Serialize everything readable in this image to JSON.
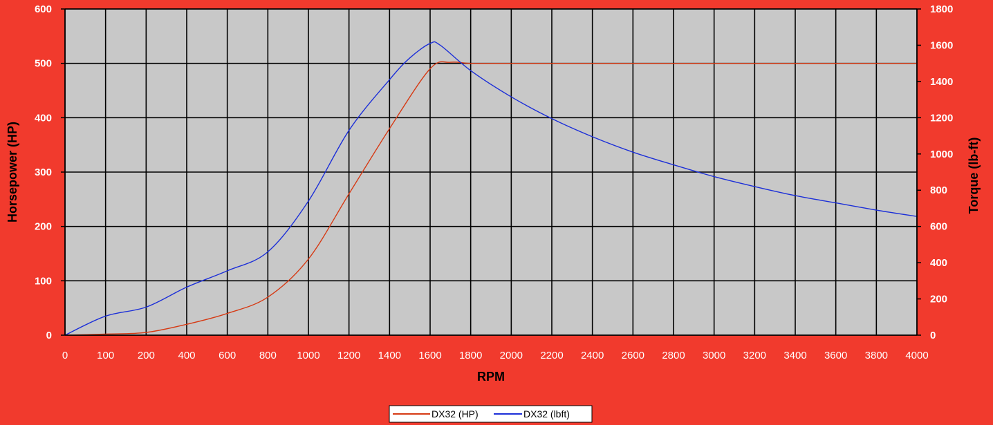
{
  "chart_data": {
    "type": "line",
    "xlabel": "RPM",
    "ylabel_left": "Horsepower (HP)",
    "ylabel_right": "Torque (lb-ft)",
    "x_ticks": [
      0,
      100,
      200,
      400,
      600,
      800,
      1000,
      1200,
      1400,
      1600,
      1800,
      2000,
      2200,
      2400,
      2600,
      2800,
      3000,
      3200,
      3400,
      3600,
      3800,
      4000
    ],
    "y_left_ticks": [
      0,
      100,
      200,
      300,
      400,
      500,
      600
    ],
    "y_right_ticks": [
      0,
      200,
      400,
      600,
      800,
      1000,
      1200,
      1400,
      1600,
      1800
    ],
    "y_left_lim": [
      0,
      600
    ],
    "y_right_lim": [
      0,
      1800
    ],
    "grid": true,
    "legend_position": "bottom-center",
    "colors": {
      "background": "#f13a2d",
      "plot_area": "#c8c8c8",
      "grid": "#000000"
    },
    "series": [
      {
        "name": "DX32 (HP)",
        "axis": "left",
        "color": "#d63a14",
        "x": [
          0,
          100,
          200,
          400,
          600,
          800,
          1000,
          1200,
          1400,
          1600,
          1700,
          1800,
          2000,
          2200,
          2400,
          2600,
          2800,
          3000,
          3200,
          3400,
          3600,
          3800,
          4000
        ],
        "values": [
          0,
          2,
          5,
          20,
          40,
          70,
          140,
          260,
          380,
          490,
          502,
          500,
          500,
          500,
          500,
          500,
          500,
          500,
          500,
          500,
          500,
          500,
          500
        ]
      },
      {
        "name": "DX32 (lbft)",
        "axis": "right",
        "color": "#1c2fd8",
        "x": [
          0,
          100,
          200,
          400,
          600,
          800,
          1000,
          1200,
          1400,
          1500,
          1600,
          1650,
          1800,
          2000,
          2200,
          2400,
          2600,
          2800,
          3000,
          3200,
          3400,
          3600,
          3800,
          4000
        ],
        "values": [
          0,
          105,
          155,
          265,
          355,
          460,
          740,
          1130,
          1410,
          1530,
          1610,
          1600,
          1460,
          1315,
          1195,
          1095,
          1010,
          940,
          875,
          820,
          770,
          730,
          690,
          655
        ]
      }
    ]
  }
}
